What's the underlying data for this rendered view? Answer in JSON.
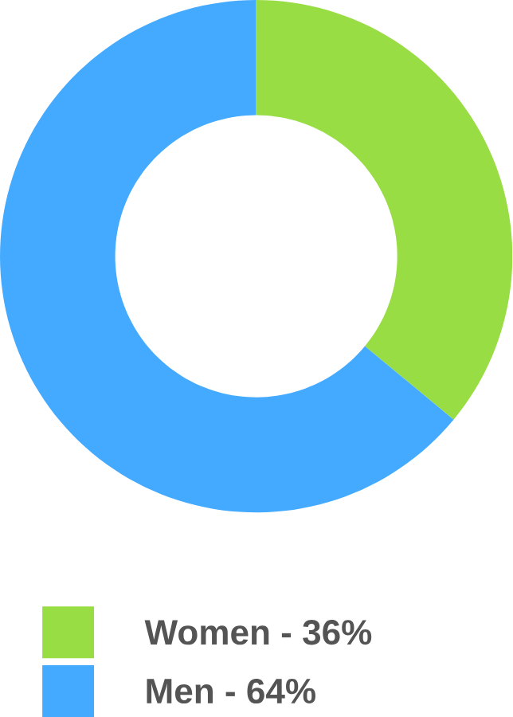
{
  "chart_data": {
    "type": "donut",
    "categories": [
      "Women - 36%",
      "Men - 64%"
    ],
    "values": [
      36,
      64
    ],
    "colors": [
      "#99dd44",
      "#44aaff"
    ],
    "legend": "bottom"
  }
}
